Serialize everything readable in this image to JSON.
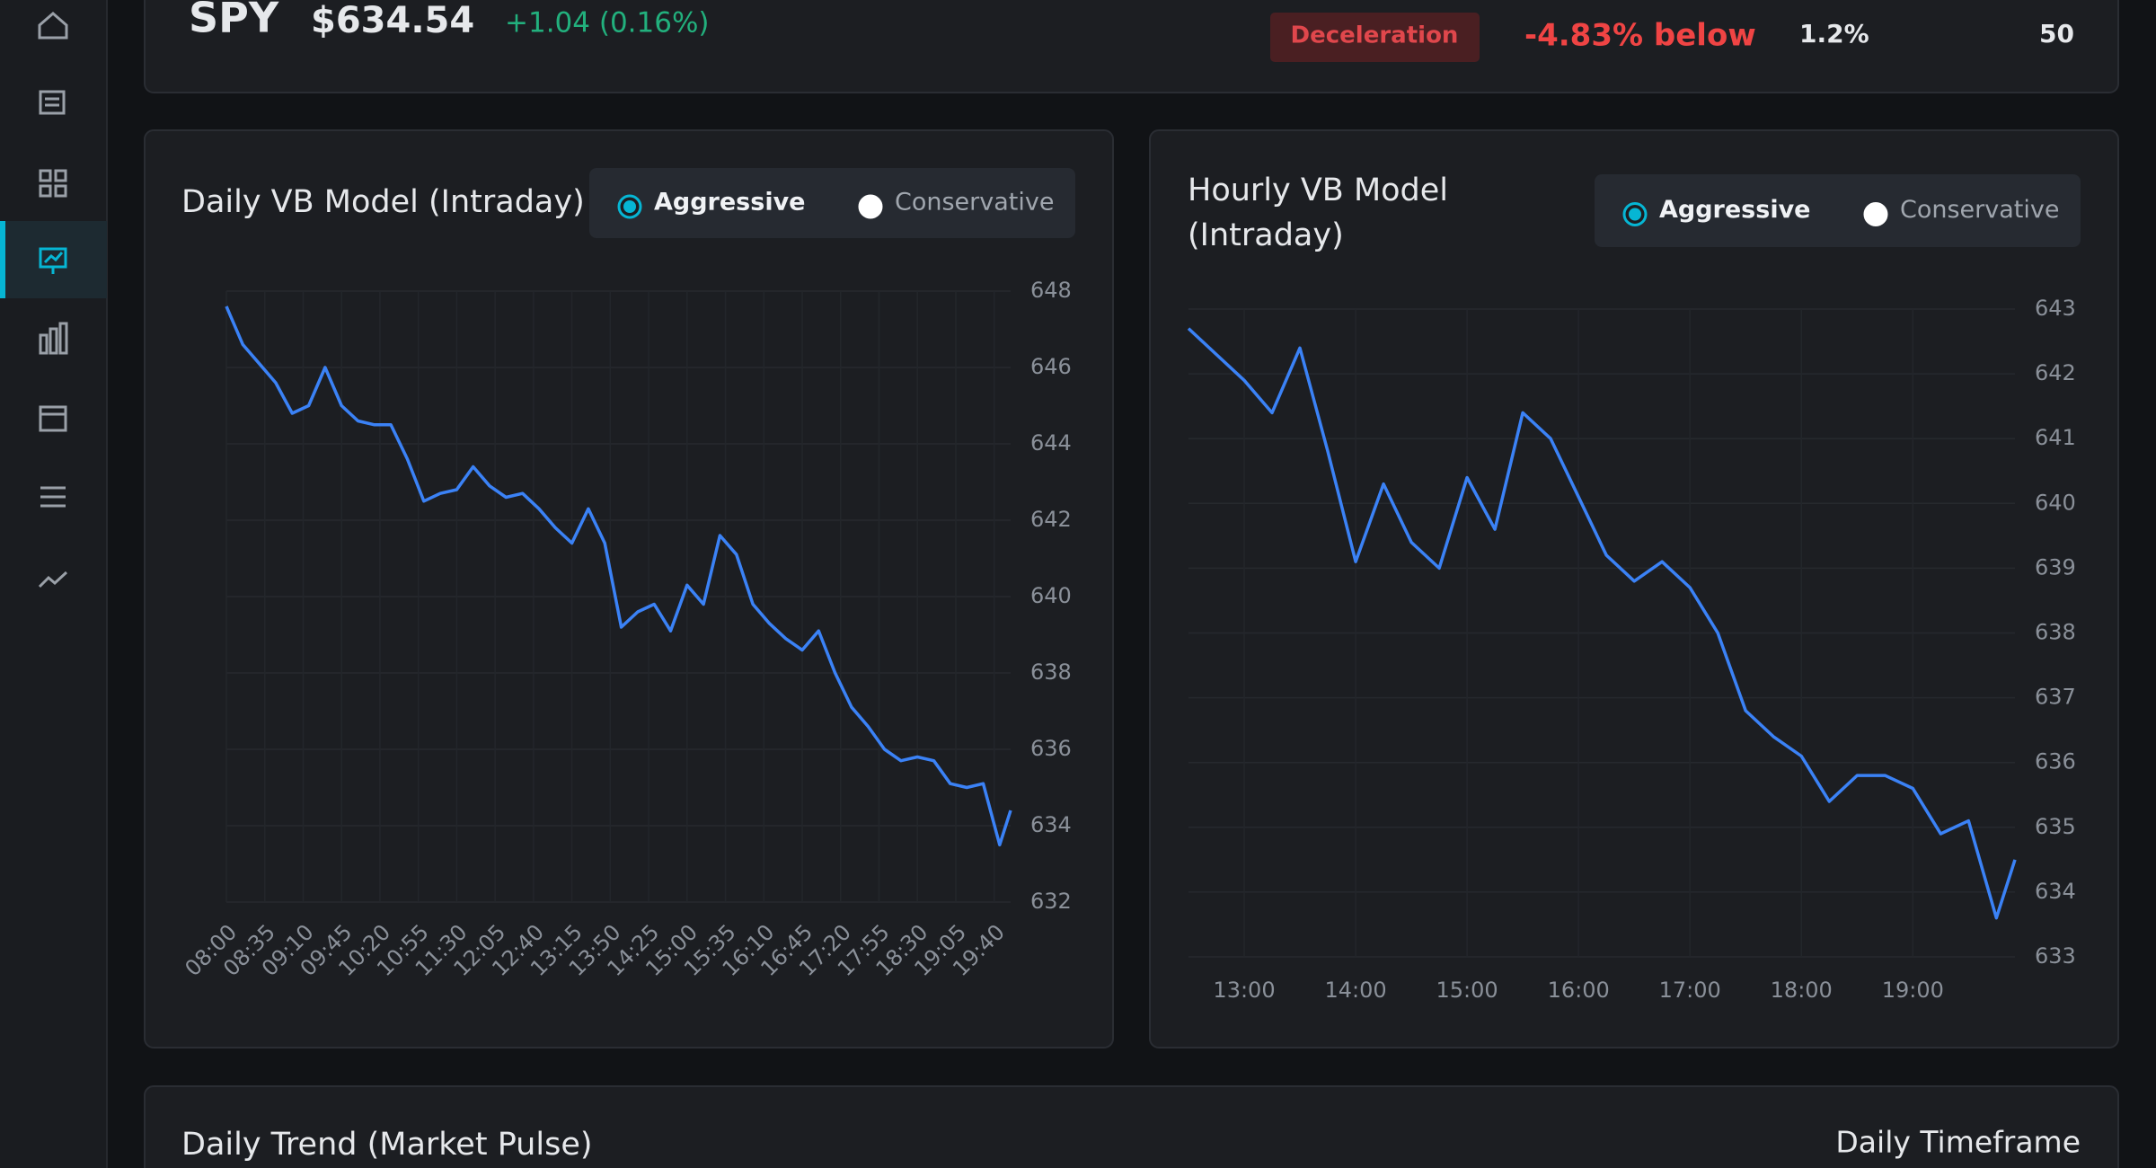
{
  "header": {
    "symbol": "SPY",
    "price": "$634.54",
    "change": "+1.04 (0.16%)",
    "status": "Deceleration",
    "deviation": "-4.83% below",
    "metric_1": "1.2%",
    "metric_2": "50"
  },
  "chart_data": [
    {
      "type": "line",
      "title": "Daily VB Model (Intraday)",
      "options": [
        "Aggressive",
        "Conservative"
      ],
      "color": "#3b82f6",
      "grid": true,
      "x": [
        "08:00",
        "08:15",
        "08:30",
        "08:45",
        "09:00",
        "09:15",
        "09:30",
        "09:45",
        "10:00",
        "10:15",
        "10:30",
        "10:45",
        "11:00",
        "11:15",
        "11:30",
        "11:45",
        "12:00",
        "12:15",
        "12:30",
        "12:45",
        "13:00",
        "13:15",
        "13:30",
        "13:45",
        "14:00",
        "14:15",
        "14:30",
        "14:45",
        "15:00",
        "15:15",
        "15:30",
        "15:45",
        "16:00",
        "16:15",
        "16:30",
        "16:45",
        "17:00",
        "17:15",
        "17:30",
        "17:45",
        "18:00",
        "18:15",
        "18:30",
        "18:45",
        "19:00",
        "19:15",
        "19:30",
        "19:45",
        "19:55"
      ],
      "values": [
        647.6,
        646.6,
        646.1,
        645.6,
        644.8,
        645.0,
        646.0,
        645.0,
        644.6,
        644.5,
        644.5,
        643.6,
        642.5,
        642.7,
        642.8,
        643.4,
        642.9,
        642.6,
        642.7,
        642.3,
        641.8,
        641.4,
        642.3,
        641.4,
        639.2,
        639.6,
        639.8,
        639.1,
        640.3,
        639.8,
        641.6,
        641.1,
        639.8,
        639.3,
        638.9,
        638.6,
        639.1,
        638.0,
        637.1,
        636.6,
        636.0,
        635.7,
        635.8,
        635.7,
        635.1,
        635.0,
        635.1,
        633.5,
        634.4
      ],
      "xlim": [
        "08:00",
        "19:55"
      ],
      "xticks": [
        "08:00",
        "08:35",
        "09:10",
        "09:45",
        "10:20",
        "10:55",
        "11:30",
        "12:05",
        "12:40",
        "13:15",
        "13:50",
        "14:25",
        "15:00",
        "15:35",
        "16:10",
        "16:45",
        "17:20",
        "17:55",
        "18:30",
        "19:05",
        "19:40"
      ],
      "ylim": [
        632,
        648
      ],
      "yticks": [
        632,
        634,
        636,
        638,
        640,
        642,
        644,
        646,
        648
      ]
    },
    {
      "type": "line",
      "title": "Hourly VB Model (Intraday)",
      "options": [
        "Aggressive",
        "Conservative"
      ],
      "color": "#3b82f6",
      "grid": true,
      "x": [
        "12:30",
        "12:45",
        "13:00",
        "13:15",
        "13:30",
        "13:45",
        "14:00",
        "14:15",
        "14:30",
        "14:45",
        "15:00",
        "15:15",
        "15:30",
        "15:45",
        "16:00",
        "16:15",
        "16:30",
        "16:45",
        "17:00",
        "17:15",
        "17:30",
        "17:45",
        "18:00",
        "18:15",
        "18:30",
        "18:45",
        "19:00",
        "19:15",
        "19:30",
        "19:45",
        "19:55"
      ],
      "values": [
        642.7,
        642.3,
        641.9,
        641.4,
        642.4,
        640.8,
        639.1,
        640.3,
        639.4,
        639.0,
        640.4,
        639.6,
        641.4,
        641.0,
        640.1,
        639.2,
        638.8,
        639.1,
        638.7,
        638.0,
        636.8,
        636.4,
        636.1,
        635.4,
        635.8,
        635.8,
        635.6,
        634.9,
        635.1,
        633.6,
        634.5
      ],
      "xlim": [
        "12:30",
        "19:55"
      ],
      "xticks": [
        "13:00",
        "14:00",
        "15:00",
        "16:00",
        "17:00",
        "18:00",
        "19:00"
      ],
      "ylim": [
        633,
        643
      ],
      "yticks": [
        633,
        634,
        635,
        636,
        637,
        638,
        639,
        640,
        641,
        642,
        643
      ]
    }
  ],
  "panel": {
    "title": "Daily Trend (Market Pulse)",
    "timeframe": "Daily Timeframe"
  }
}
